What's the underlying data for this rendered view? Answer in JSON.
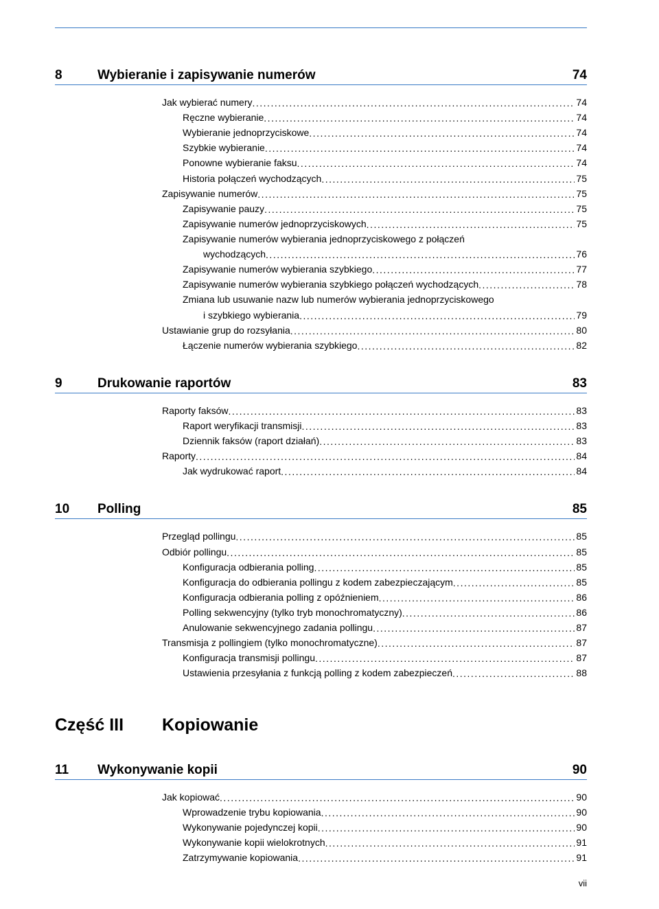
{
  "accent_color": "#3879c5",
  "text_color": "#000000",
  "background_color": "#ffffff",
  "font_family": "Arial, Helvetica, sans-serif",
  "sections": [
    {
      "num": "8",
      "title": "Wybieranie i zapisywanie numerów",
      "page": "74",
      "entries": [
        {
          "lvl": 0,
          "text": "Jak wybierać numery",
          "page": "74"
        },
        {
          "lvl": 1,
          "text": "Ręczne wybieranie",
          "page": "74"
        },
        {
          "lvl": 1,
          "text": "Wybieranie jednoprzyciskowe",
          "page": "74"
        },
        {
          "lvl": 1,
          "text": "Szybkie wybieranie",
          "page": "74"
        },
        {
          "lvl": 1,
          "text": "Ponowne wybieranie faksu",
          "page": "74"
        },
        {
          "lvl": 1,
          "text": "Historia połączeń wychodzących",
          "page": "75"
        },
        {
          "lvl": 0,
          "text": "Zapisywanie numerów",
          "page": "75"
        },
        {
          "lvl": 1,
          "text": "Zapisywanie pauzy",
          "page": "75"
        },
        {
          "lvl": 1,
          "text": "Zapisywanie numerów jednoprzyciskowych",
          "page": "75"
        },
        {
          "lvl": 1,
          "wrap": true,
          "text_line1": "Zapisywanie numerów wybierania jednoprzyciskowego z połączeń",
          "text_line2": "wychodzących",
          "page": "76"
        },
        {
          "lvl": 1,
          "text": "Zapisywanie numerów wybierania szybkiego",
          "page": "77"
        },
        {
          "lvl": 1,
          "text": "Zapisywanie numerów wybierania szybkiego połączeń wychodzących",
          "page": "78"
        },
        {
          "lvl": 1,
          "wrap": true,
          "text_line1": "Zmiana lub usuwanie nazw lub numerów wybierania jednoprzyciskowego",
          "text_line2": "i szybkiego wybierania",
          "page": "79"
        },
        {
          "lvl": 0,
          "text": "Ustawianie grup do rozsyłania",
          "page": "80"
        },
        {
          "lvl": 1,
          "text": "Łączenie numerów wybierania szybkiego",
          "page": "82"
        }
      ]
    },
    {
      "num": "9",
      "title": "Drukowanie raportów",
      "page": "83",
      "entries": [
        {
          "lvl": 0,
          "text": "Raporty faksów",
          "page": "83"
        },
        {
          "lvl": 1,
          "text": "Raport weryfikacji transmisji",
          "page": "83"
        },
        {
          "lvl": 1,
          "text": "Dziennik faksów (raport działań)",
          "page": "83"
        },
        {
          "lvl": 0,
          "text": "Raporty",
          "page": "84"
        },
        {
          "lvl": 1,
          "text": "Jak wydrukować raport",
          "page": "84"
        }
      ]
    },
    {
      "num": "10",
      "title": "Polling",
      "page": "85",
      "entries": [
        {
          "lvl": 0,
          "text": "Przegląd pollingu",
          "page": "85"
        },
        {
          "lvl": 0,
          "text": "Odbiór pollingu",
          "page": "85"
        },
        {
          "lvl": 1,
          "text": "Konfiguracja odbierania polling",
          "page": "85"
        },
        {
          "lvl": 1,
          "text": "Konfiguracja do odbierania pollingu z kodem zabezpieczającym",
          "page": "85"
        },
        {
          "lvl": 1,
          "text": "Konfiguracja odbierania polling z opóźnieniem",
          "page": "86"
        },
        {
          "lvl": 1,
          "text": "Polling sekwencyjny (tylko tryb monochromatyczny)",
          "page": "86"
        },
        {
          "lvl": 1,
          "text": "Anulowanie sekwencyjnego zadania pollingu",
          "page": "87"
        },
        {
          "lvl": 0,
          "text": "Transmisja z pollingiem (tylko monochromatyczne)",
          "page": "87"
        },
        {
          "lvl": 1,
          "text": "Konfiguracja transmisji pollingu",
          "page": "87"
        },
        {
          "lvl": 1,
          "text": "Ustawienia przesyłania z funkcją polling z kodem zabezpieczeń",
          "page": "88"
        }
      ]
    }
  ],
  "part": {
    "label": "Część III",
    "title": "Kopiowanie"
  },
  "after_part_section": {
    "num": "11",
    "title": "Wykonywanie kopii",
    "page": "90",
    "entries": [
      {
        "lvl": 0,
        "text": "Jak kopiować",
        "page": "90"
      },
      {
        "lvl": 1,
        "text": "Wprowadzenie trybu kopiowania",
        "page": "90"
      },
      {
        "lvl": 1,
        "text": "Wykonywanie pojedynczej kopii",
        "page": "90"
      },
      {
        "lvl": 1,
        "text": "Wykonywanie kopii wielokrotnych",
        "page": "91"
      },
      {
        "lvl": 1,
        "text": "Zatrzymywanie kopiowania",
        "page": "91"
      }
    ]
  },
  "footer_page": "vii"
}
